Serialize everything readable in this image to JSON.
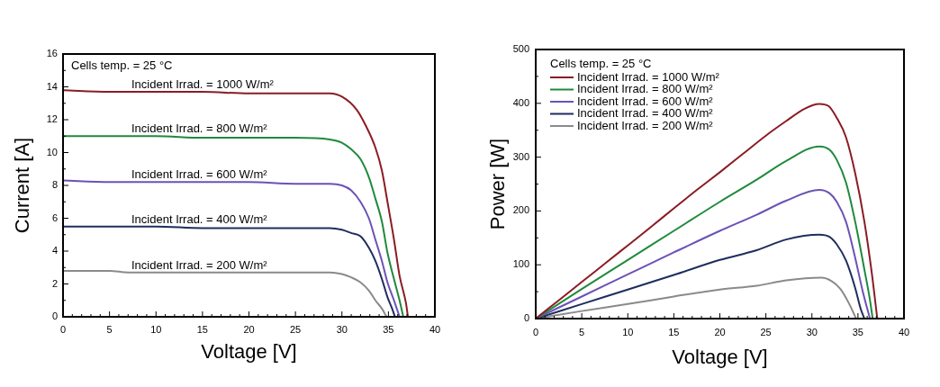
{
  "chart_data": [
    {
      "type": "line",
      "xlabel": "Voltage [V]",
      "ylabel": "Current [A]",
      "xlim": [
        0,
        40
      ],
      "ylim": [
        0,
        16
      ],
      "xticks": [
        0,
        {
          "value": 1,
          "label": null
        },
        {
          "value": 2,
          "label": null
        },
        {
          "value": 3,
          "label": null
        },
        {
          "value": 4,
          "label": null
        },
        5,
        {
          "value": 6,
          "label": null
        },
        {
          "value": 7,
          "label": null
        },
        {
          "value": 8,
          "label": null
        },
        {
          "value": 9,
          "label": null
        },
        10,
        {
          "value": 11,
          "label": null
        },
        {
          "value": 12,
          "label": null
        },
        {
          "value": 13,
          "label": null
        },
        {
          "value": 14,
          "label": null
        },
        15,
        {
          "value": 16,
          "label": null
        },
        {
          "value": 17,
          "label": null
        },
        {
          "value": 18,
          "label": null
        },
        {
          "value": 19,
          "label": null
        },
        20,
        {
          "value": 21,
          "label": null
        },
        {
          "value": 22,
          "label": null
        },
        {
          "value": 23,
          "label": null
        },
        {
          "value": 24,
          "label": null
        },
        25,
        {
          "value": 26,
          "label": null
        },
        {
          "value": 27,
          "label": null
        },
        {
          "value": 28,
          "label": null
        },
        {
          "value": 29,
          "label": null
        },
        30,
        {
          "value": 31,
          "label": null
        },
        {
          "value": 32,
          "label": null
        },
        {
          "value": 33,
          "label": null
        },
        {
          "value": 34,
          "label": null
        },
        35,
        {
          "value": 36,
          "label": null
        },
        {
          "value": 37,
          "label": null
        },
        {
          "value": 38,
          "label": null
        },
        {
          "value": 39,
          "label": null
        },
        40
      ],
      "yticks": [
        0,
        {
          "value": 1,
          "label": null
        },
        2,
        {
          "value": 3,
          "label": null
        },
        4,
        {
          "value": 5,
          "label": null
        },
        6,
        {
          "value": 7,
          "label": null
        },
        8,
        {
          "value": 9,
          "label": null
        },
        10,
        {
          "value": 11,
          "label": null
        },
        12,
        {
          "value": 13,
          "label": null
        },
        14,
        {
          "value": 15,
          "label": null
        },
        16
      ],
      "marker": "none",
      "legend": false,
      "annotations": [
        "Cells temp. = 25 °C"
      ],
      "series": [
        {
          "name": "Incident Irrad. = 1000 W/m²",
          "color": "#8b1c24",
          "x": [
            0,
            5,
            10,
            15,
            20,
            25,
            28.7,
            30,
            31.6,
            32.6,
            33.6,
            34.3,
            34.9,
            35.6,
            36.2,
            36.9,
            37.1
          ],
          "values": [
            13.8,
            13.7,
            13.7,
            13.7,
            13.6,
            13.6,
            13.6,
            13.4,
            12.6,
            11.6,
            10.3,
            8.9,
            7.0,
            4.7,
            2.5,
            0.8,
            0
          ]
        },
        {
          "name": "Incident Irrad. = 800 W/m²",
          "color": "#1f8a3d",
          "x": [
            0,
            5,
            10,
            15,
            20,
            25,
            28.7,
            30,
            31,
            32,
            32.9,
            33.6,
            34.3,
            34.9,
            35.6,
            36.2,
            36.6
          ],
          "values": [
            11.0,
            11.0,
            11.0,
            10.9,
            10.9,
            10.9,
            10.8,
            10.6,
            10.2,
            9.6,
            8.5,
            7.2,
            5.8,
            3.9,
            2.3,
            1.0,
            0
          ]
        },
        {
          "name": "Incident Irrad. = 600 W/m²",
          "color": "#6b52b5",
          "x": [
            0,
            5,
            10,
            15,
            20,
            25,
            28.7,
            30,
            31,
            32,
            32.9,
            33.6,
            34.3,
            34.9,
            35.6,
            36.2
          ],
          "values": [
            8.3,
            8.2,
            8.2,
            8.2,
            8.2,
            8.1,
            8.1,
            8.0,
            7.7,
            7.0,
            6.0,
            4.7,
            3.4,
            2.1,
            1.0,
            0
          ]
        },
        {
          "name": "Incident Irrad. = 400 W/m²",
          "color": "#1f2d5e",
          "x": [
            0,
            5,
            10,
            15,
            20,
            25,
            28.7,
            30,
            31,
            32,
            32.9,
            33.6,
            34.3,
            34.9,
            35.4,
            35.7
          ],
          "values": [
            5.5,
            5.5,
            5.5,
            5.4,
            5.4,
            5.4,
            5.4,
            5.3,
            5.1,
            4.9,
            4.2,
            3.4,
            2.3,
            1.2,
            0.5,
            0
          ]
        },
        {
          "name": "Incident Irrad. = 200 W/m²",
          "color": "#8a8a8a",
          "x": [
            0,
            5,
            7,
            10,
            15,
            20,
            25,
            28.7,
            30,
            31,
            32,
            32.9,
            33.6,
            34.3,
            34.8
          ],
          "values": [
            2.8,
            2.8,
            2.7,
            2.7,
            2.7,
            2.7,
            2.7,
            2.7,
            2.6,
            2.4,
            2.1,
            1.6,
            1.0,
            0.5,
            0
          ]
        }
      ]
    },
    {
      "type": "line",
      "xlabel": "Voltage [V]",
      "ylabel": "Power [W]",
      "xlim": [
        0,
        40
      ],
      "ylim": [
        0,
        500
      ],
      "xticks": [
        0,
        {
          "value": 1,
          "label": null
        },
        {
          "value": 2,
          "label": null
        },
        {
          "value": 3,
          "label": null
        },
        {
          "value": 4,
          "label": null
        },
        5,
        {
          "value": 6,
          "label": null
        },
        {
          "value": 7,
          "label": null
        },
        {
          "value": 8,
          "label": null
        },
        {
          "value": 9,
          "label": null
        },
        10,
        {
          "value": 11,
          "label": null
        },
        {
          "value": 12,
          "label": null
        },
        {
          "value": 13,
          "label": null
        },
        {
          "value": 14,
          "label": null
        },
        15,
        {
          "value": 16,
          "label": null
        },
        {
          "value": 17,
          "label": null
        },
        {
          "value": 18,
          "label": null
        },
        {
          "value": 19,
          "label": null
        },
        20,
        {
          "value": 21,
          "label": null
        },
        {
          "value": 22,
          "label": null
        },
        {
          "value": 23,
          "label": null
        },
        {
          "value": 24,
          "label": null
        },
        25,
        {
          "value": 26,
          "label": null
        },
        {
          "value": 27,
          "label": null
        },
        {
          "value": 28,
          "label": null
        },
        {
          "value": 29,
          "label": null
        },
        30,
        {
          "value": 31,
          "label": null
        },
        {
          "value": 32,
          "label": null
        },
        {
          "value": 33,
          "label": null
        },
        {
          "value": 34,
          "label": null
        },
        35,
        {
          "value": 36,
          "label": null
        },
        {
          "value": 37,
          "label": null
        },
        {
          "value": 38,
          "label": null
        },
        {
          "value": 39,
          "label": null
        },
        40
      ],
      "yticks": [
        0,
        {
          "value": 50,
          "label": null
        },
        100,
        {
          "value": 150,
          "label": null
        },
        200,
        {
          "value": 250,
          "label": null
        },
        300,
        {
          "value": 350,
          "label": null
        },
        400,
        {
          "value": 450,
          "label": null
        },
        500
      ],
      "marker": "none",
      "legend": "top left",
      "legend_title": "Cells temp. = 25 °C",
      "series": [
        {
          "name": "Incident Irrad. = 1000 W/m²",
          "color": "#8b1c24",
          "x": [
            0,
            2.5,
            5,
            7.5,
            10,
            12.5,
            15,
            17.5,
            20,
            22.5,
            25,
            27.2,
            29.2,
            30.8,
            31.8,
            32.7,
            33.7,
            34.7,
            35.7,
            36.5,
            37.1
          ],
          "values": [
            0,
            34,
            68,
            102,
            136,
            170,
            205,
            239,
            272,
            306,
            340,
            367,
            390,
            399,
            395,
            373,
            337,
            270,
            180,
            85,
            0
          ]
        },
        {
          "name": "Incident Irrad. = 800 W/m²",
          "color": "#1f8a3d",
          "x": [
            0,
            5,
            10,
            15,
            20,
            24,
            27.2,
            30.8,
            31.9,
            32.7,
            33.7,
            34.7,
            35.7,
            36.3,
            36.6
          ],
          "values": [
            0,
            55,
            109,
            163,
            217,
            258,
            293,
            320,
            314,
            295,
            253,
            180,
            91,
            35,
            0
          ]
        },
        {
          "name": "Incident Irrad. = 600 W/m²",
          "color": "#6b52b5",
          "x": [
            0,
            5,
            10,
            15,
            20,
            24,
            27.2,
            30.8,
            31.9,
            32.7,
            33.7,
            34.7,
            35.5,
            36.3
          ],
          "values": [
            0,
            41,
            82,
            123,
            163,
            193,
            219,
            239,
            233,
            217,
            180,
            113,
            52,
            0
          ]
        },
        {
          "name": "Incident Irrad. = 400 W/m²",
          "color": "#1f2d5e",
          "x": [
            0,
            5,
            10,
            15,
            20,
            24,
            27.2,
            30.8,
            31.9,
            32.7,
            33.7,
            34.7,
            35.3,
            35.7
          ],
          "values": [
            0,
            27,
            54,
            81,
            109,
            127,
            147,
            156,
            152,
            138,
            108,
            57,
            18,
            0
          ]
        },
        {
          "name": "Incident Irrad. = 200 W/m²",
          "color": "#8a8a8a",
          "x": [
            0,
            5,
            10,
            15,
            20,
            24,
            27.2,
            31,
            32.1,
            33.1,
            34,
            34.8
          ],
          "values": [
            0,
            14,
            27,
            41,
            54,
            61,
            71,
            76,
            70,
            55,
            29,
            0
          ]
        }
      ]
    }
  ]
}
